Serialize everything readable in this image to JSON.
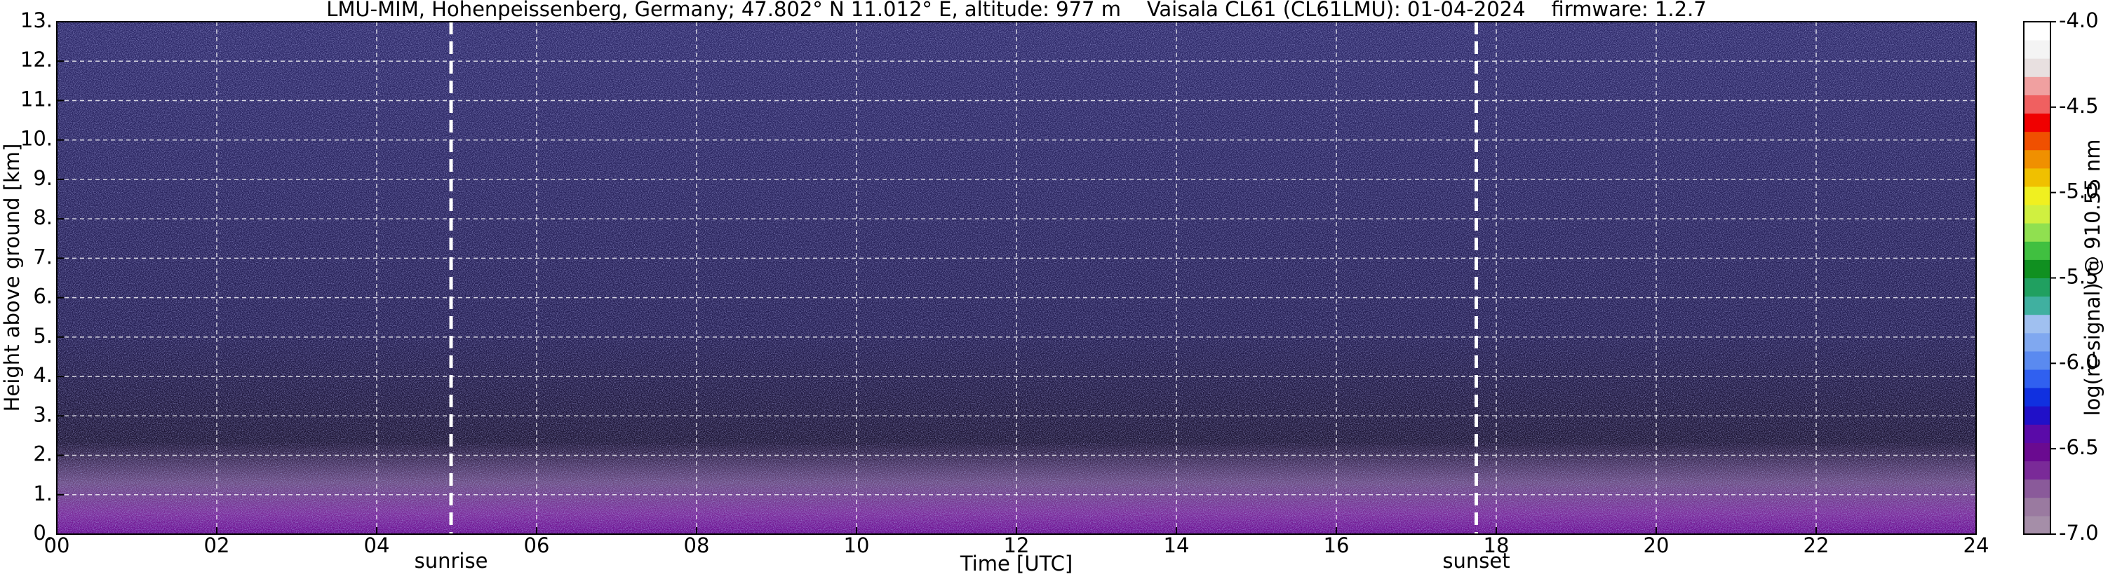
{
  "chart_data": {
    "type": "heatmap",
    "title": "LMU-MIM, Hohenpeissenberg, Germany; 47.802° N 11.012° E, altitude: 977 m    Vaisala CL61 (CL61LMU): 01-04-2024    firmware: 1.2.7",
    "xlabel": "Time [UTC]",
    "ylabel": "Height above ground [km]",
    "xlim": [
      0,
      24
    ],
    "xticks": [
      {
        "value": 0,
        "label": "00"
      },
      {
        "value": 2,
        "label": "02"
      },
      {
        "value": 4,
        "label": "04"
      },
      {
        "value": 6,
        "label": "06"
      },
      {
        "value": 8,
        "label": "08"
      },
      10,
      12,
      14,
      16,
      18,
      20,
      22,
      24
    ],
    "ylim": [
      0,
      13
    ],
    "yticks": [
      {
        "value": 0,
        "label": "0."
      },
      {
        "value": 1,
        "label": "1."
      },
      {
        "value": 2,
        "label": "2."
      },
      {
        "value": 3,
        "label": "3."
      },
      {
        "value": 4,
        "label": "4."
      },
      {
        "value": 5,
        "label": "5."
      },
      {
        "value": 6,
        "label": "6."
      },
      {
        "value": 7,
        "label": "7."
      },
      {
        "value": 8,
        "label": "8."
      },
      {
        "value": 9,
        "label": "9."
      },
      {
        "value": 10,
        "label": "10."
      },
      {
        "value": 11,
        "label": "11."
      },
      {
        "value": 12,
        "label": "12."
      },
      {
        "value": 13,
        "label": "13."
      }
    ],
    "grid": true,
    "vlines": [
      {
        "x": 4.93,
        "label": "sunrise"
      },
      {
        "x": 17.75,
        "label": "sunset"
      }
    ],
    "colorbar": {
      "label": "log(rc-signal) @ 910.55 nm",
      "clim": [
        -7,
        -4
      ],
      "ticks": [
        {
          "value": -7,
          "label": "-7.0"
        },
        -6.5,
        {
          "value": -6,
          "label": "-6.0"
        },
        -5.5,
        {
          "value": -5,
          "label": "-5.0"
        },
        -4.5,
        {
          "value": -4,
          "label": "-4.0"
        }
      ],
      "colors": [
        "#a58ea8",
        "#9a7aa0",
        "#8a5a9a",
        "#7a2a98",
        "#6a0a90",
        "#5a0aa8",
        "#2010c8",
        "#1030e0",
        "#3060f0",
        "#5a8af0",
        "#80a8f0",
        "#a0c0f0",
        "#40b0a0",
        "#20a060",
        "#109020",
        "#40c040",
        "#90e050",
        "#d0f040",
        "#f0f020",
        "#f0c000",
        "#f09000",
        "#f05000",
        "#f00000",
        "#f06060",
        "#f0a0a0",
        "#e8e0e0",
        "#f4f4f4",
        "#ffffff"
      ]
    }
  }
}
